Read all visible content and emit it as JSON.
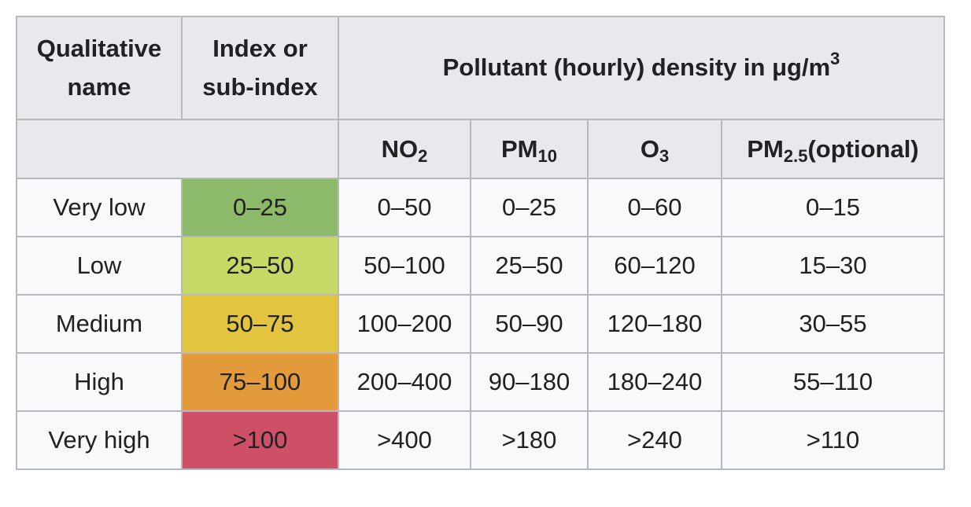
{
  "table": {
    "header": {
      "col1": "Qualitative name",
      "col1_line1": "Qualitative",
      "col1_line2": "name",
      "col2": "Index or sub-index",
      "col2_line1": "Index or",
      "col2_line2": "sub-index",
      "group_text": "Pollutant (hourly) density in μg/m",
      "group_sup": "3"
    },
    "pollutants": [
      {
        "base": "NO",
        "sub": "2",
        "suffix": ""
      },
      {
        "base": "PM",
        "sub": "10",
        "suffix": ""
      },
      {
        "base": "O",
        "sub": "3",
        "suffix": ""
      },
      {
        "base": "PM",
        "sub": "2.5",
        "suffix": "(optional)"
      }
    ],
    "rows": [
      {
        "name": "Very low",
        "index": "0–25",
        "color": "#8cb96a",
        "values": [
          "0–50",
          "0–25",
          "0–60",
          "0–15"
        ]
      },
      {
        "name": "Low",
        "index": "25–50",
        "color": "#c6d866",
        "values": [
          "50–100",
          "25–50",
          "60–120",
          "15–30"
        ]
      },
      {
        "name": "Medium",
        "index": "50–75",
        "color": "#e2c43f",
        "values": [
          "100–200",
          "50–90",
          "120–180",
          "30–55"
        ]
      },
      {
        "name": "High",
        "index": "75–100",
        "color": "#e39a3a",
        "values": [
          "200–400",
          "90–180",
          "180–240",
          "55–110"
        ]
      },
      {
        "name": "Very high",
        "index": ">100",
        "color": "#cd5066",
        "values": [
          ">400",
          ">180",
          ">240",
          ">110"
        ]
      }
    ]
  }
}
